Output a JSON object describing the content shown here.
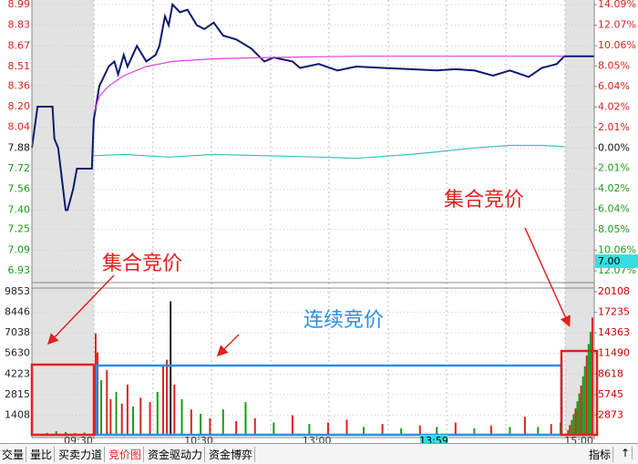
{
  "chart_data": [
    {
      "type": "line",
      "ylim": [
        6.93,
        8.99
      ],
      "yticks": [
        8.99,
        8.83,
        8.67,
        8.51,
        8.36,
        {
          "value": 8.2,
          "label": "8.20"
        },
        8.04,
        7.88,
        7.72,
        7.56,
        {
          "value": 7.4,
          "label": "7.40"
        },
        7.25,
        7.09,
        6.93
      ],
      "y2lim": [
        -12.07,
        14.09
      ],
      "y2ticks": [
        {
          "value": 14.09,
          "label": "14.09%"
        },
        {
          "value": 12.07,
          "label": "12.07%"
        },
        {
          "value": 10.06,
          "label": "10.06%"
        },
        {
          "value": 8.05,
          "label": "8.05%"
        },
        {
          "value": 6.04,
          "label": "6.04%"
        },
        {
          "value": 4.02,
          "label": "4.02%"
        },
        {
          "value": 2.01,
          "label": "2.01%"
        },
        {
          "value": 0,
          "label": "0.00%"
        },
        {
          "value": -2.01,
          "label": "2.01%"
        },
        {
          "value": -4.02,
          "label": "4.02%"
        },
        {
          "value": -6.04,
          "label": "6.04%"
        },
        {
          "value": -8.05,
          "label": "8.05%"
        },
        {
          "value": -10.06,
          "label": "10.06%"
        },
        {
          "value": -12.07,
          "label": "12.07%"
        }
      ],
      "xlim": [
        0,
        300
      ],
      "cursor_price": "7.00",
      "series": [
        {
          "color": "#0b1a6e",
          "x": [
            0,
            3,
            11,
            12,
            14,
            18,
            19,
            22,
            24,
            32,
            33,
            36,
            39,
            41,
            44,
            46,
            49,
            51,
            56,
            61,
            66,
            68,
            71,
            73,
            75,
            79,
            83,
            88,
            92,
            97,
            102,
            109,
            117,
            124,
            129,
            139,
            143,
            153,
            163,
            173,
            187,
            202,
            216,
            226,
            236,
            246,
            255,
            265,
            272,
            280,
            284,
            300
          ],
          "values": [
            7.88,
            8.2,
            8.2,
            7.95,
            7.88,
            7.4,
            7.4,
            7.56,
            7.72,
            7.72,
            8.1,
            8.36,
            8.45,
            8.51,
            8.55,
            8.45,
            8.6,
            8.51,
            8.67,
            8.55,
            8.6,
            8.67,
            8.9,
            8.83,
            8.99,
            8.93,
            8.95,
            8.83,
            8.8,
            8.85,
            8.75,
            8.72,
            8.65,
            8.55,
            8.58,
            8.55,
            8.5,
            8.53,
            8.48,
            8.51,
            8.5,
            8.49,
            8.48,
            8.49,
            8.48,
            8.44,
            8.48,
            8.43,
            8.5,
            8.53,
            8.59,
            8.59
          ]
        },
        {
          "color": "#e040e0",
          "x": [
            33,
            36,
            41,
            49,
            61,
            75,
            97,
            124,
            173,
            236,
            284
          ],
          "values": [
            8.15,
            8.28,
            8.36,
            8.44,
            8.51,
            8.55,
            8.57,
            8.58,
            8.59,
            8.59,
            8.59
          ]
        },
        {
          "color": "#3cc0c0",
          "x": [
            33,
            49,
            73,
            97,
            124,
            153,
            173,
            202,
            216,
            236,
            255,
            272,
            284
          ],
          "values": [
            7.82,
            7.83,
            7.81,
            7.83,
            7.82,
            7.81,
            7.8,
            7.83,
            7.85,
            7.88,
            7.9,
            7.9,
            7.89
          ]
        }
      ]
    },
    {
      "type": "bar",
      "ylim": [
        0,
        9853
      ],
      "yticks": [
        9853,
        8446,
        7038,
        5630,
        4223,
        2815,
        1408
      ],
      "y2lim": [
        0,
        20108
      ],
      "y2ticks": [
        20108,
        17235,
        14363,
        11490,
        8618,
        5745,
        2873
      ],
      "xlim": [
        0,
        300
      ],
      "xticks": [
        {
          "value": 33,
          "label": "09:30"
        },
        {
          "value": 89,
          "label": "10:30"
        },
        {
          "value": 152,
          "label": "13:00"
        },
        {
          "value": 300,
          "label": "15:00"
        }
      ],
      "cursor_time": "13:59",
      "series": [
        {
          "color": "#1a9a1a",
          "x": [
            3,
            8,
            13,
            18,
            23,
            28
          ],
          "values": [
            150,
            200,
            300,
            250,
            180,
            220
          ]
        },
        {
          "x": [
            34,
            35,
            37,
            40,
            42,
            45,
            48,
            51,
            54,
            58,
            63,
            67,
            70,
            72,
            74,
            76,
            80,
            85,
            90,
            95,
            102,
            109,
            114,
            119,
            129,
            139,
            148,
            158,
            168,
            177,
            187,
            197,
            207,
            216,
            226,
            236,
            245,
            255,
            263,
            270,
            277,
            282
          ],
          "values": [
            7000,
            5700,
            3800,
            4500,
            2500,
            3000,
            2200,
            3500,
            2000,
            2600,
            2300,
            3000,
            4800,
            5200,
            9200,
            3500,
            2500,
            1800,
            1500,
            1200,
            1800,
            1000,
            2300,
            1200,
            900,
            1400,
            800,
            900,
            1100,
            600,
            800,
            500,
            700,
            600,
            900,
            500,
            700,
            600,
            1300,
            600,
            800,
            900
          ],
          "colors": [
            "#e02020",
            "#e02020",
            "#1a9a1a",
            "#e02020",
            "#e02020",
            "#1a9a1a",
            "#e02020",
            "#e02020",
            "#1a9a1a",
            "#e02020",
            "#e02020",
            "#1a9a1a",
            "#e02020",
            "#e02020",
            "#222222",
            "#e02020",
            "#1a9a1a",
            "#e02020",
            "#1a9a1a",
            "#e02020",
            "#1a9a1a",
            "#e02020",
            "#1a9a1a",
            "#e02020",
            "#1a9a1a",
            "#e02020",
            "#1a9a1a",
            "#e02020",
            "#e02020",
            "#1a9a1a",
            "#e02020",
            "#1a9a1a",
            "#e02020",
            "#1a9a1a",
            "#e02020",
            "#1a9a1a",
            "#e02020",
            "#1a9a1a",
            "#e02020",
            "#1a9a1a",
            "#e02020",
            "#1a9a1a"
          ]
        },
        {
          "axis": "y2",
          "x": [
            286,
            287,
            288,
            289,
            290,
            291,
            292,
            293,
            294,
            295,
            296,
            297,
            298,
            299
          ],
          "values": [
            800,
            1500,
            2200,
            3000,
            3800,
            4800,
            5900,
            7000,
            8300,
            9700,
            11200,
            12800,
            14500,
            16500
          ],
          "colors": [
            "#1a9a1a",
            "#e02020",
            "#1a9a1a",
            "#1a9a1a",
            "#e02020",
            "#1a9a1a",
            "#1a9a1a",
            "#e02020",
            "#1a9a1a",
            "#1a9a1a",
            "#e02020",
            "#1a9a1a",
            "#1a9a1a",
            "#e02020"
          ]
        }
      ]
    }
  ],
  "annotations": {
    "left_auction": "集合竞价",
    "continuous": "连续竞价",
    "right_auction": "集合竞价"
  },
  "tabs": [
    "交量",
    "量比",
    "买卖力道",
    "竞价图",
    "资金驱动力",
    "资金博弈"
  ],
  "active_tab": 3,
  "right_tabs": [
    "指标",
    "↑"
  ]
}
